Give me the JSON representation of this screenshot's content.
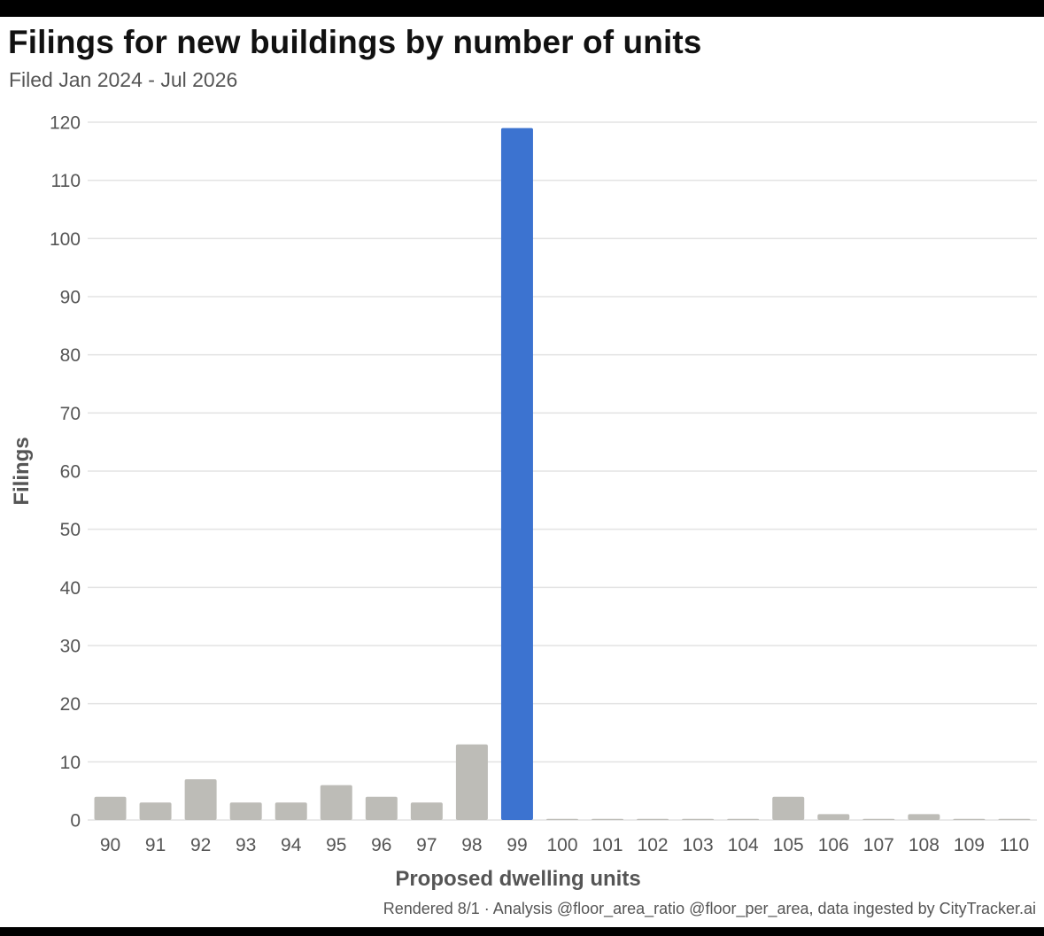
{
  "header": {
    "title": "Filings for new buildings by number of units",
    "subtitle": "Filed Jan 2024 - Jul 2026"
  },
  "footer": {
    "credit": "Rendered 8/1 · Analysis @floor_area_ratio @floor_per_area, data ingested by CityTracker.ai"
  },
  "chart_data": {
    "type": "bar",
    "title": "Filings for new buildings by number of units",
    "subtitle": "Filed Jan 2024 - Jul 2026",
    "xlabel": "Proposed dwelling units",
    "ylabel": "Filings",
    "categories": [
      "90",
      "91",
      "92",
      "93",
      "94",
      "95",
      "96",
      "97",
      "98",
      "99",
      "100",
      "101",
      "102",
      "103",
      "104",
      "105",
      "106",
      "107",
      "108",
      "109",
      "110"
    ],
    "values": [
      4,
      3,
      7,
      3,
      3,
      6,
      4,
      3,
      13,
      119,
      0,
      0,
      0,
      0,
      0,
      4,
      1,
      0,
      1,
      0,
      0
    ],
    "highlight_category": "99",
    "highlight_color": "#3c73d0",
    "bar_color": "#bdbcb7",
    "grid_color": "#e3e3e3",
    "ylim": [
      0,
      120
    ],
    "yticks": [
      0,
      10,
      20,
      30,
      40,
      50,
      60,
      70,
      80,
      90,
      100,
      110,
      120
    ],
    "grid": true,
    "legend": "none"
  }
}
